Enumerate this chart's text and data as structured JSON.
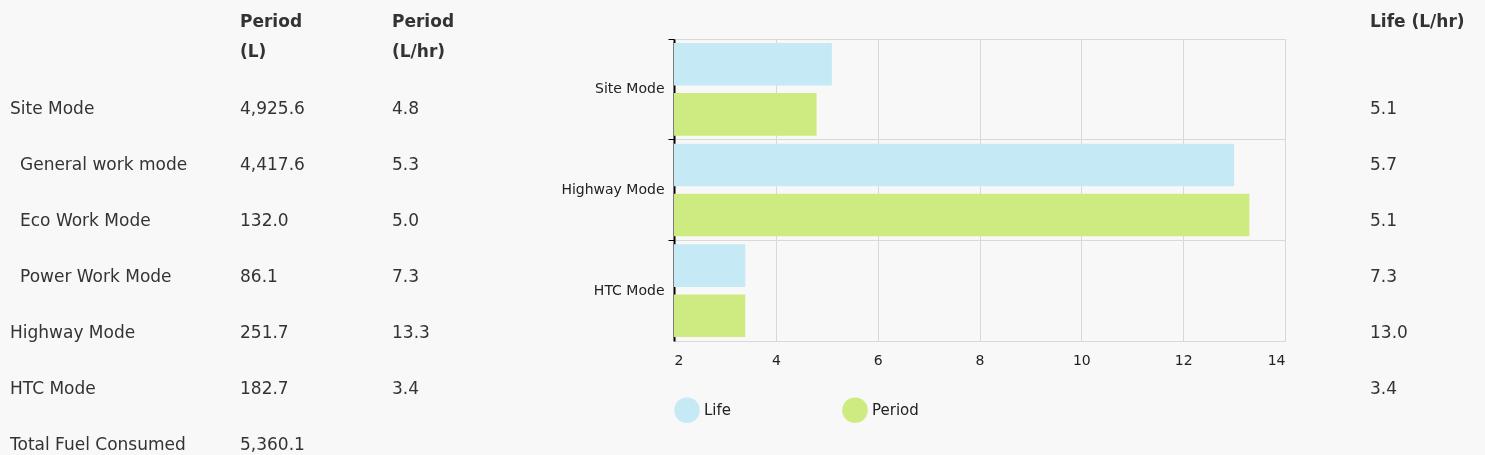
{
  "chart_data": [
    {
      "type": "other",
      "categories": [
        "Site Mode",
        "General work mode",
        "Eco Work Mode",
        "Power Work Mode",
        "Highway Mode",
        "HTC Mode",
        "Total Fuel Consumed"
      ],
      "series": [
        {
          "name": "Period (L)",
          "values": [
            4925.6,
            4417.6,
            132.0,
            86.1,
            251.7,
            182.7,
            5360.1
          ],
          "value_labels": [
            "4,925.6",
            "4,417.6",
            "132.0",
            "86.1",
            "251.7",
            "182.7",
            "5,360.1"
          ]
        },
        {
          "name": "Period (L/hr)",
          "values": [
            4.8,
            5.3,
            5.0,
            7.3,
            13.3,
            3.4,
            null
          ],
          "value_labels": [
            "4.8",
            "5.3",
            "5.0",
            "7.3",
            "13.3",
            "3.4",
            null
          ]
        }
      ]
    },
    {
      "type": "bar",
      "orientation": "horizontal",
      "categories": [
        "Site Mode",
        "Highway Mode",
        "HTC Mode"
      ],
      "series": [
        {
          "name": "Life",
          "color": "#c5e9f5",
          "values": [
            5.1,
            13.0,
            3.4
          ]
        },
        {
          "name": "Period",
          "color": "#cdeb80",
          "values": [
            4.8,
            13.3,
            3.4
          ]
        }
      ],
      "xlim": [
        2,
        14
      ],
      "xticks": [
        2,
        4,
        6,
        8,
        10,
        12,
        14
      ],
      "grid": true,
      "legend": "bottom"
    },
    {
      "type": "other",
      "categories": [
        null,
        null,
        null,
        null,
        null,
        null
      ],
      "series": [
        {
          "name": "Life (L/hr)",
          "values": [
            5.1,
            5.7,
            5.1,
            7.3,
            13.0,
            3.4
          ],
          "value_labels": [
            "5.1",
            "5.7",
            "5.1",
            "7.3",
            "13.0",
            "3.4"
          ]
        }
      ]
    }
  ]
}
